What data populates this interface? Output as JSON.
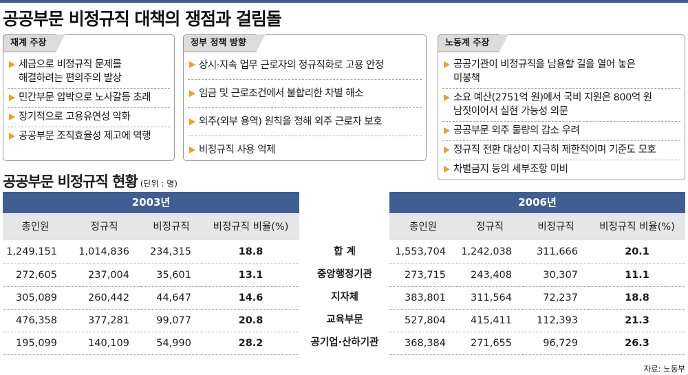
{
  "title": "공공부문 비정규직 대책의 쟁점과 걸림돌",
  "panels": [
    {
      "label": "재계 주장",
      "items": [
        "세금으로 비정규직 문제를",
        "민간부문 압박으로 노사갈등 초래",
        "장기적으로 고용유연성 악화",
        "공공부문 조직효율성 제고에 역행"
      ],
      "item0_line2": "해결하려는 편의주의 발상"
    },
    {
      "label": "정부 정책 방향",
      "items": [
        "상시·지속 업무 근로자의 정규직화로 고용 안정",
        "임금 및 근로조건에서 불합리한 차별 해소",
        "외주(외부 용역) 원칙을 정해 외주 근로자 보호",
        "비정규직 사용 억제"
      ]
    },
    {
      "label": "노동계 주장",
      "items": [
        "공공기관이 비정규직을 남용할 길을 열어 놓은",
        "소요 예산(2751억 원)에서 국비 지원은 800억 원",
        "공공부문 외주 물량의 감소 우려",
        "정규직 전환 대상이 지극히 제한적이며 기준도 모호",
        "차별금지 등의 세부조항 미비"
      ],
      "item0_line2": "미봉책",
      "item1_line2": "남짓이어서 실현 가능성 의문"
    }
  ],
  "table": {
    "title": "공공부문 비정규직 현황",
    "unit": "(단위 : 명)",
    "year_left": "2003년",
    "year_right": "2006년",
    "columns": [
      "총인원",
      "정규직",
      "비정규직",
      "비정규직 비율(%)"
    ],
    "row_labels": [
      "합 계",
      "중앙행정기관",
      "지자체",
      "교육부문",
      "공기업·산하기관"
    ],
    "rows_2003": [
      [
        "1,249,151",
        "1,014,836",
        "234,315",
        "18.8"
      ],
      [
        "272,605",
        "237,004",
        "35,601",
        "13.1"
      ],
      [
        "305,089",
        "260,442",
        "44,647",
        "14.6"
      ],
      [
        "476,358",
        "377,281",
        "99,077",
        "20.8"
      ],
      [
        "195,099",
        "140,109",
        "54,990",
        "28.2"
      ]
    ],
    "rows_2006": [
      [
        "1,553,704",
        "1,242,038",
        "311,666",
        "20.1"
      ],
      [
        "273,715",
        "243,408",
        "30,307",
        "11.1"
      ],
      [
        "383,801",
        "311,564",
        "72,237",
        "18.8"
      ],
      [
        "527,804",
        "415,411",
        "112,393",
        "21.3"
      ],
      [
        "368,384",
        "271,655",
        "96,729",
        "26.3"
      ]
    ]
  },
  "source": "자료: 노동부",
  "colors": {
    "accent": "#3f5f93",
    "bullet": "#f0a020",
    "header_bg": "#e6e6e6",
    "tab_bg": "#dcdcdc"
  }
}
